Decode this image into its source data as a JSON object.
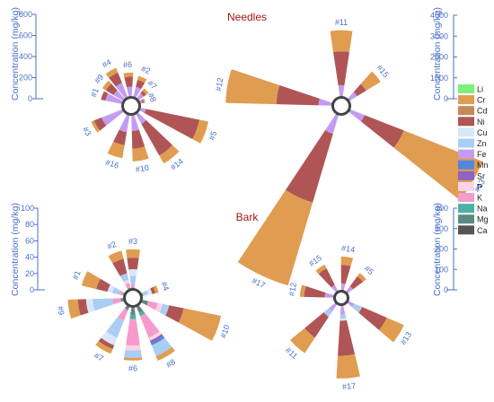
{
  "chart_data": [
    {
      "type": "radial-bar",
      "title": "Needles",
      "ylabel": "Concentration (mg/kg)",
      "ylim": [
        0,
        800
      ],
      "yticks": [
        "0",
        "200",
        "400",
        "600",
        "800"
      ],
      "segment_order": [
        "Ca",
        "Mg",
        "Na",
        "K",
        "P",
        "Sr",
        "Mn",
        "Fe",
        "Zn",
        "Cu",
        "Ni",
        "Cr",
        "Cd",
        "Li"
      ],
      "spokes": [
        {
          "label": "#1",
          "angle": -70,
          "segments": {
            "Ca": 15,
            "Fe": 165,
            "Ni": 45
          }
        },
        {
          "label": "#2",
          "angle": 22,
          "segments": {
            "Ca": 15,
            "Fe": 100,
            "Ni": 70,
            "Cr": 40
          }
        },
        {
          "label": "#3",
          "angle": -120,
          "segments": {
            "Ca": 15,
            "Fe": 220,
            "Ni": 80,
            "Cr": 30
          }
        },
        {
          "label": "#4",
          "angle": -30,
          "segments": {
            "Ca": 15,
            "Fe": 150,
            "Ni": 110,
            "Cr": 50
          }
        },
        {
          "label": "#5",
          "angle": 110,
          "segments": {
            "Ca": 15,
            "Fe": 55,
            "Ni": 540,
            "Cr": 90
          }
        },
        {
          "label": "#6",
          "angle": -5,
          "segments": {
            "Ca": 15,
            "Fe": 95,
            "Ni": 100,
            "Cr": 40
          }
        },
        {
          "label": "#7",
          "angle": 45,
          "segments": {
            "Ca": 15,
            "Fe": 60,
            "Ni": 30,
            "Cr": 30
          }
        },
        {
          "label": "#8",
          "angle": 68,
          "segments": {
            "Ca": 15,
            "Fe": 20,
            "Ni": 15,
            "Cr": 15
          }
        },
        {
          "label": "#9",
          "angle": -50,
          "segments": {
            "Ca": 15,
            "Fe": 110,
            "Ni": 90,
            "Cr": 40
          }
        },
        {
          "label": "#10",
          "angle": 170,
          "segments": {
            "Ca": 15,
            "Fe": 155,
            "Ni": 175,
            "Cr": 125
          }
        },
        {
          "label": "#14",
          "angle": 142,
          "segments": {
            "Ca": 15,
            "Fe": 110,
            "Ni": 360,
            "Cr": 90
          }
        },
        {
          "label": "#16",
          "angle": -162,
          "segments": {
            "Ca": 15,
            "Fe": 170,
            "Ni": 130,
            "Cr": 130
          }
        }
      ]
    },
    {
      "type": "radial-bar",
      "title": "",
      "ylabel": "Concentration (mg/kg)",
      "ylim": [
        0,
        4000
      ],
      "yticks": [
        "0",
        "1000",
        "2000",
        "3000",
        "4000"
      ],
      "segment_order": [
        "Ca",
        "Mg",
        "Na",
        "K",
        "P",
        "Sr",
        "Mn",
        "Fe",
        "Zn",
        "Cu",
        "Ni",
        "Cr",
        "Cd",
        "Li"
      ],
      "spokes": [
        {
          "label": "#11",
          "angle": 0,
          "segments": {
            "Ca": 100,
            "Fe": 500,
            "Ni": 1600,
            "Cr": 1000
          }
        },
        {
          "label": "#12",
          "angle": -80,
          "segments": {
            "Ca": 100,
            "Fe": 600,
            "Ni": 2000,
            "Cr": 2400
          }
        },
        {
          "label": "#13",
          "angle": 120,
          "segments": {
            "Ca": 100,
            "Fe": 700,
            "Ni": 2000,
            "Cr": 4000
          }
        },
        {
          "label": "#15",
          "angle": 50,
          "segments": {
            "Ca": 100,
            "Fe": 400,
            "Ni": 500,
            "Cr": 800
          }
        },
        {
          "label": "#17",
          "angle": -155,
          "segments": {
            "Ca": 100,
            "Fe": 900,
            "Ni": 3400,
            "Cr": 4100
          }
        }
      ]
    },
    {
      "type": "radial-bar",
      "title": "Bark",
      "ylabel": "Concentration (mg/kg)",
      "ylim": [
        0,
        100
      ],
      "yticks": [
        "0",
        "20",
        "40",
        "60",
        "80",
        "100"
      ],
      "segment_order": [
        "Ca",
        "Mg",
        "Na",
        "K",
        "P",
        "Sr",
        "Mn",
        "Fe",
        "Zn",
        "Cu",
        "Ni",
        "Cr",
        "Cd",
        "Li"
      ],
      "spokes": [
        {
          "label": "#1",
          "angle": -68,
          "segments": {
            "Ca": 1,
            "Mg": 2,
            "K": 5,
            "Zn": 8,
            "Cu": 6,
            "Ni": 14,
            "Cr": 18
          }
        },
        {
          "label": "#2",
          "angle": -22,
          "segments": {
            "Ca": 1,
            "Mg": 2,
            "K": 6,
            "P": 4,
            "Zn": 8,
            "Ni": 18,
            "Cr": 10
          }
        },
        {
          "label": "#3",
          "angle": 0,
          "segments": {
            "Ca": 1,
            "Mg": 2,
            "K": 4,
            "Zn": 10,
            "Cu": 8,
            "Ni": 14,
            "Cr": 10
          }
        },
        {
          "label": "#4",
          "angle": 70,
          "segments": {
            "Ca": 1,
            "Mg": 2,
            "Zn": 6,
            "Cu": 5,
            "Ni": 4,
            "Cr": 4
          }
        },
        {
          "label": "#6",
          "angle": 180,
          "segments": {
            "Ca": 2,
            "Mg": 9,
            "Na": 5,
            "K": 32,
            "P": 6,
            "Zn": 9,
            "Cr": 3
          }
        },
        {
          "label": "#7",
          "angle": -150,
          "segments": {
            "Ca": 2,
            "Mg": 4,
            "K": 14,
            "Zn": 22,
            "Cu": 10,
            "Ni": 5,
            "Cr": 6
          }
        },
        {
          "label": "#8",
          "angle": 150,
          "segments": {
            "Ca": 2,
            "Mg": 8,
            "Na": 4,
            "K": 28,
            "P": 4,
            "Sr": 3,
            "Zn": 14,
            "Mn": 3,
            "Cr": 6
          }
        },
        {
          "label": "#9",
          "angle": -100,
          "segments": {
            "Ca": 1,
            "Mg": 4,
            "K": 10,
            "Zn": 24,
            "Cu": 8,
            "Ni": 10,
            "Cr": 12
          }
        },
        {
          "label": "#10",
          "angle": 110,
          "segments": {
            "Ca": 1,
            "Mg": 8,
            "K": 12,
            "P": 6,
            "Zn": 8,
            "Ni": 18,
            "Cr": 46
          }
        }
      ]
    },
    {
      "type": "radial-bar",
      "title": "",
      "ylabel": "Concentration (mg/kg)",
      "ylim": [
        0,
        400
      ],
      "yticks": [
        "0",
        "100",
        "200",
        "300",
        "400"
      ],
      "segment_order": [
        "Ca",
        "Mg",
        "Na",
        "K",
        "P",
        "Sr",
        "Mn",
        "Fe",
        "Zn",
        "Cu",
        "Ni",
        "Cr",
        "Cd",
        "Li"
      ],
      "spokes": [
        {
          "label": "#5",
          "angle": 45,
          "segments": {
            "Ca": 10,
            "Fe": 30,
            "Ni": 60,
            "Cr": 20
          }
        },
        {
          "label": "#11",
          "angle": -138,
          "segments": {
            "Ca": 10,
            "Fe": 40,
            "Zn": 30,
            "Ni": 120,
            "Cr": 90
          }
        },
        {
          "label": "#12",
          "angle": -80,
          "segments": {
            "Ca": 10,
            "Fe": 40,
            "Ni": 100,
            "Cr": 20
          }
        },
        {
          "label": "#13",
          "angle": 122,
          "segments": {
            "Ca": 10,
            "Fe": 30,
            "Zn": 40,
            "Ni": 130,
            "Cr": 90
          }
        },
        {
          "label": "#14",
          "angle": 8,
          "segments": {
            "Ca": 10,
            "Fe": 30,
            "Ni": 90,
            "Cr": 40
          }
        },
        {
          "label": "#15",
          "angle": -35,
          "segments": {
            "Ca": 10,
            "Fe": 30,
            "Ni": 90,
            "Cr": 20
          }
        },
        {
          "label": "#17",
          "angle": 175,
          "segments": {
            "Ca": 10,
            "Fe": 40,
            "Zn": 20,
            "Cu": 10,
            "Ni": 170,
            "Cr": 110
          }
        }
      ]
    }
  ],
  "legend": {
    "entries": [
      {
        "label": "Li",
        "color": "#7df07a"
      },
      {
        "label": "Cr",
        "color": "#e09c50"
      },
      {
        "label": "Cd",
        "color": "#c48a56"
      },
      {
        "label": "Ni",
        "color": "#b05555"
      },
      {
        "label": "Cu",
        "color": "#d8e8fa"
      },
      {
        "label": "Zn",
        "color": "#a9cdf3"
      },
      {
        "label": "Fe",
        "color": "#c29cf1"
      },
      {
        "label": "Mn",
        "color": "#4f88da"
      },
      {
        "label": "Sr",
        "color": "#8e63c1"
      },
      {
        "label": "P",
        "color": "#fbd3e6"
      },
      {
        "label": "K",
        "color": "#f59bcb"
      },
      {
        "label": "Na",
        "color": "#4bb0a6"
      },
      {
        "label": "Mg",
        "color": "#5c8a82"
      },
      {
        "label": "Ca",
        "color": "#555555"
      }
    ]
  }
}
